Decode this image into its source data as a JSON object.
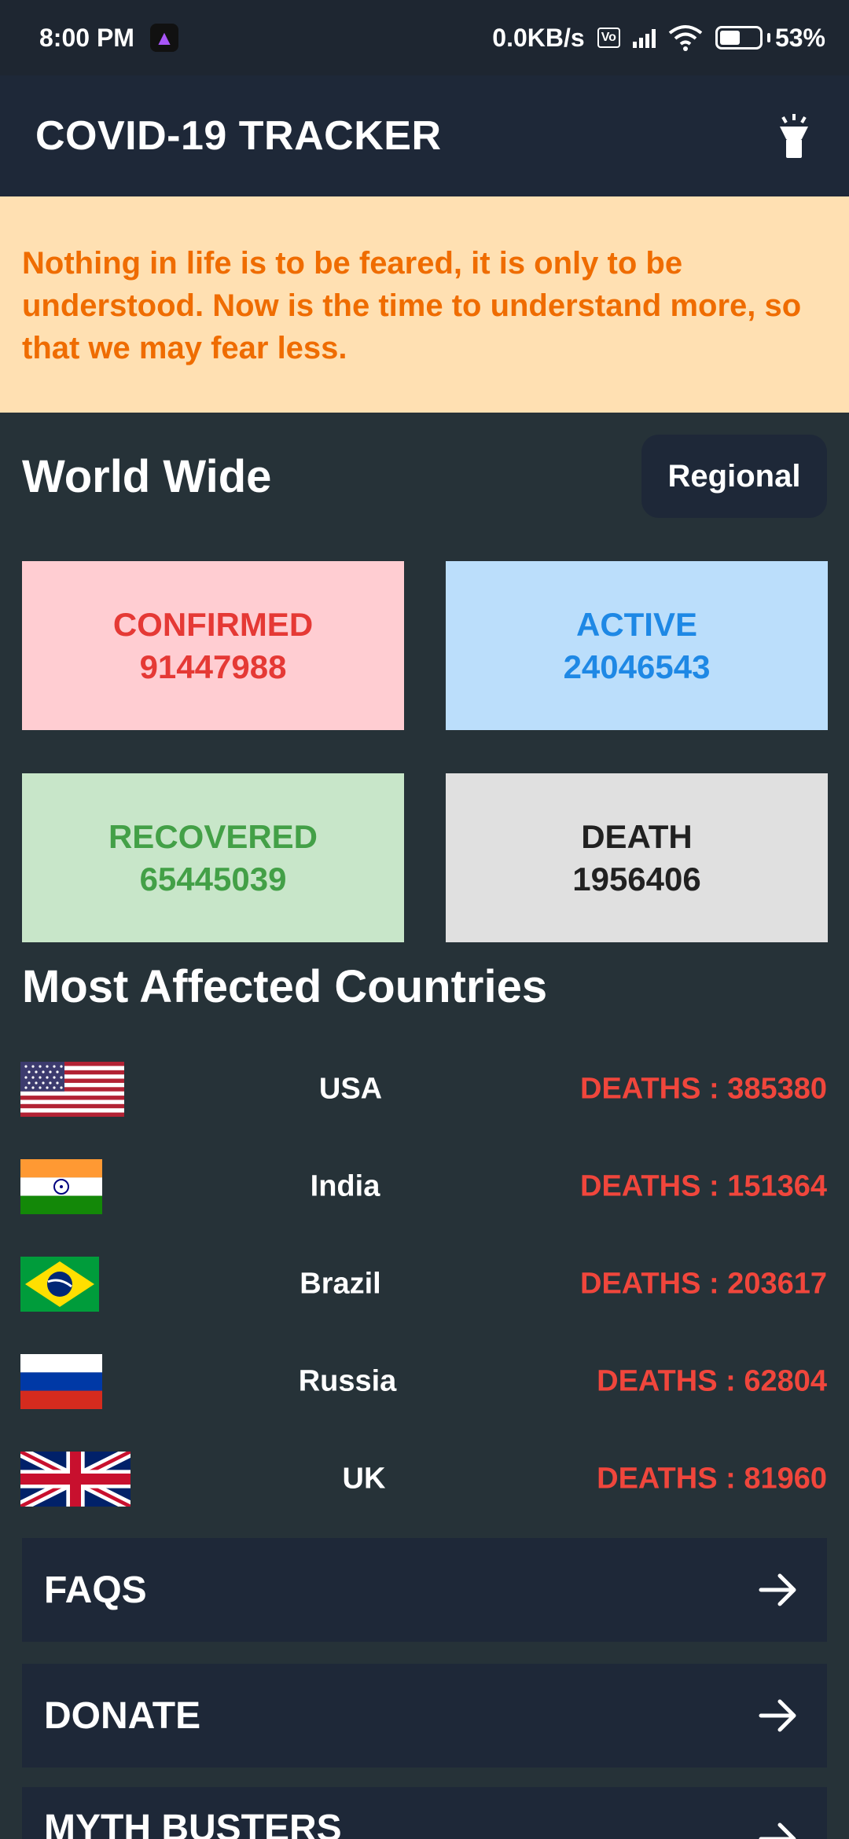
{
  "status_bar": {
    "time": "8:00 PM",
    "network_speed": "0.0KB/s",
    "battery": "53%",
    "battery_level": 0.53
  },
  "app_bar": {
    "title": "COVID-19 TRACKER",
    "torch_icon": "flashlight-icon"
  },
  "quote": {
    "text": "Nothing in life is to be feared, it is only to be understood. Now is the time to understand more, so that we may fear less."
  },
  "world_wide": {
    "title": "World Wide",
    "regional_label": "Regional"
  },
  "stats": {
    "confirmed": {
      "label": "CONFIRMED",
      "value": "91447988",
      "bg": "#ffcdd2",
      "color": "#e53935"
    },
    "active": {
      "label": "ACTIVE",
      "value": "24046543",
      "bg": "#bbdefb",
      "color": "#1e88e5"
    },
    "recovered": {
      "label": "RECOVERED",
      "value": "65445039",
      "bg": "#c8e6c9",
      "color": "#43a047"
    },
    "death": {
      "label": "DEATH",
      "value": "1956406",
      "bg": "#e0e0e0",
      "color": "#212121"
    }
  },
  "countries": {
    "title": "Most Affected Countries",
    "items": [
      {
        "name": "USA",
        "deaths": "DEATHS : 385380",
        "flag": "usa-flag-icon"
      },
      {
        "name": "India",
        "deaths": "DEATHS : 151364",
        "flag": "india-flag-icon"
      },
      {
        "name": "Brazil",
        "deaths": "DEATHS : 203617",
        "flag": "brazil-flag-icon"
      },
      {
        "name": "Russia",
        "deaths": "DEATHS : 62804",
        "flag": "russia-flag-icon"
      },
      {
        "name": "UK",
        "deaths": "DEATHS : 81960",
        "flag": "uk-flag-icon"
      }
    ]
  },
  "nav": {
    "faqs": "FAQS",
    "donate": "DONATE",
    "myth_busters": "MYTH BUSTERS"
  }
}
